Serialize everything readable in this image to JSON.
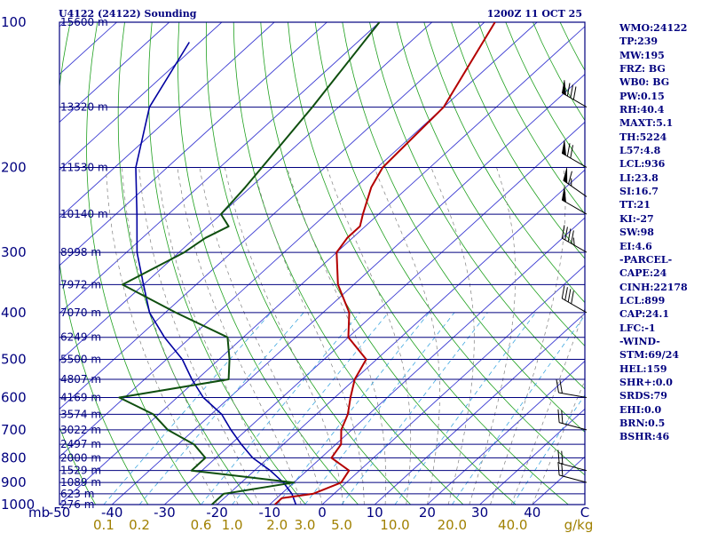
{
  "header": {
    "station": "U4122 (24122) Sounding",
    "time": "1200Z 11 OCT 25"
  },
  "stats": [
    "WMO:24122",
    "TP:239",
    "MW:195",
    "FRZ: BG",
    "WB0: BG",
    "PW:0.15",
    "RH:40.4",
    "MAXT:5.1",
    "TH:5224",
    "L57:4.8",
    "LCL:936",
    "LI:23.8",
    "SI:16.7",
    "TT:21",
    "KI:-27",
    "SW:98",
    "EI:4.6",
    "-PARCEL-",
    "CAPE:24",
    "CINH:22178",
    "LCL:899",
    "CAP:24.1",
    "LFC:-1",
    "-WIND-",
    "STM:69/24",
    "HEL:159",
    "SHR+:0.0",
    "SRDS:79",
    "EHI:0.0",
    "BRN:0.5",
    "BSHR:46"
  ],
  "colors": {
    "frame": "#00007f",
    "isobar": "#00007f",
    "isotherm": "#3c3cd2",
    "dry_adiabat": "#1fa01f",
    "moist_adiabat": "#7f7f7f",
    "mixing_ratio": "#3fa7e0",
    "temperature": "#b40000",
    "dewpoint": "#0f4f0f",
    "parcel": "#0000a0",
    "axis_text": "#00007f",
    "mixing_label": "#a08000",
    "wind": "#000000"
  },
  "chart_data": {
    "type": "skew-t",
    "pressure_range_hpa": [
      1000,
      100
    ],
    "temperature_range_c": [
      -50,
      50
    ],
    "pressure_axis_unit": "mb",
    "mixing_ratio_unit": "g/kg",
    "pressure_levels": [
      {
        "p": 100,
        "label": "100"
      },
      {
        "p": 200,
        "label": "200"
      },
      {
        "p": 300,
        "label": "300"
      },
      {
        "p": 400,
        "label": "400"
      },
      {
        "p": 500,
        "label": "500"
      },
      {
        "p": 600,
        "label": "600"
      },
      {
        "p": 700,
        "label": "700"
      },
      {
        "p": 800,
        "label": "800"
      },
      {
        "p": 900,
        "label": "900"
      },
      {
        "p": 1000,
        "label": "1000"
      }
    ],
    "height_levels": [
      {
        "p": 100,
        "label": "15600 m"
      },
      {
        "p": 150,
        "label": "13320 m"
      },
      {
        "p": 200,
        "label": "11530 m"
      },
      {
        "p": 250,
        "label": "10140 m"
      },
      {
        "p": 300,
        "label": "8998 m"
      },
      {
        "p": 350,
        "label": "7972 m"
      },
      {
        "p": 400,
        "label": "7070 m"
      },
      {
        "p": 450,
        "label": "6249 m"
      },
      {
        "p": 500,
        "label": "5500 m"
      },
      {
        "p": 550,
        "label": "4807 m"
      },
      {
        "p": 600,
        "label": "4169 m"
      },
      {
        "p": 650,
        "label": "3574 m"
      },
      {
        "p": 700,
        "label": "3022 m"
      },
      {
        "p": 750,
        "label": "2497 m"
      },
      {
        "p": 800,
        "label": "2000 m"
      },
      {
        "p": 850,
        "label": "1529 m"
      },
      {
        "p": 900,
        "label": "1089 m"
      },
      {
        "p": 950,
        "label": "623 m"
      },
      {
        "p": 1000,
        "label": "276 m"
      }
    ],
    "temp_ticks": [
      {
        "t": -50,
        "label": "-50"
      },
      {
        "t": -40,
        "label": "-40"
      },
      {
        "t": -30,
        "label": "-30"
      },
      {
        "t": -20,
        "label": "-20"
      },
      {
        "t": -10,
        "label": "-10"
      },
      {
        "t": 0,
        "label": "0"
      },
      {
        "t": 10,
        "label": "10"
      },
      {
        "t": 20,
        "label": "20"
      },
      {
        "t": 30,
        "label": "30"
      },
      {
        "t": 40,
        "label": "40"
      },
      {
        "t": 50,
        "label": "C"
      }
    ],
    "mixing_ratio_labels": [
      {
        "w": 0.1,
        "label": "0.1"
      },
      {
        "w": 0.2,
        "label": "0.2"
      },
      {
        "w": 0.6,
        "label": "0.6"
      },
      {
        "w": 1.0,
        "label": "1.0"
      },
      {
        "w": 2.0,
        "label": "2.0"
      },
      {
        "w": 3.0,
        "label": "3.0"
      },
      {
        "w": 5.0,
        "label": "5.0"
      },
      {
        "w": 10.0,
        "label": "10.0"
      },
      {
        "w": 20.0,
        "label": "20.0"
      },
      {
        "w": 40.0,
        "label": "40.0"
      }
    ],
    "temperature": [
      [
        1000,
        -9
      ],
      [
        970,
        -9
      ],
      [
        950,
        -4
      ],
      [
        900,
        -1
      ],
      [
        850,
        -2
      ],
      [
        800,
        -8
      ],
      [
        750,
        -9
      ],
      [
        700,
        -12
      ],
      [
        650,
        -14
      ],
      [
        600,
        -17
      ],
      [
        550,
        -20
      ],
      [
        500,
        -22
      ],
      [
        450,
        -30
      ],
      [
        400,
        -35
      ],
      [
        350,
        -43
      ],
      [
        300,
        -50
      ],
      [
        280,
        -51
      ],
      [
        265,
        -51
      ],
      [
        250,
        -53
      ],
      [
        220,
        -57
      ],
      [
        200,
        -59
      ],
      [
        150,
        -60
      ],
      [
        100,
        -68
      ]
    ],
    "dewpoint": [
      [
        1000,
        -21
      ],
      [
        950,
        -21
      ],
      [
        900,
        -10
      ],
      [
        850,
        -32
      ],
      [
        800,
        -32
      ],
      [
        750,
        -37
      ],
      [
        700,
        -45
      ],
      [
        650,
        -51
      ],
      [
        600,
        -61
      ],
      [
        550,
        -44
      ],
      [
        500,
        -48
      ],
      [
        450,
        -53
      ],
      [
        400,
        -68
      ],
      [
        350,
        -84
      ],
      [
        300,
        -79
      ],
      [
        280,
        -78
      ],
      [
        265,
        -76
      ],
      [
        250,
        -80
      ],
      [
        220,
        -81
      ],
      [
        200,
        -82
      ],
      [
        150,
        -85
      ],
      [
        100,
        -90
      ]
    ],
    "parcel": [
      [
        1000,
        -5
      ],
      [
        950,
        -8
      ],
      [
        900,
        -12
      ],
      [
        850,
        -17
      ],
      [
        800,
        -23
      ],
      [
        750,
        -28
      ],
      [
        700,
        -33
      ],
      [
        650,
        -38
      ],
      [
        600,
        -45
      ],
      [
        550,
        -51
      ],
      [
        500,
        -57
      ],
      [
        450,
        -65
      ],
      [
        400,
        -73
      ],
      [
        350,
        -80
      ],
      [
        300,
        -88
      ],
      [
        250,
        -96
      ],
      [
        200,
        -106
      ],
      [
        150,
        -116
      ],
      [
        110,
        -122
      ]
    ],
    "wind_barbs": [
      {
        "p": 150,
        "dir": 300,
        "speed": 80
      },
      {
        "p": 200,
        "dir": 300,
        "speed": 70
      },
      {
        "p": 230,
        "dir": 305,
        "speed": 65
      },
      {
        "p": 250,
        "dir": 300,
        "speed": 50
      },
      {
        "p": 300,
        "dir": 300,
        "speed": 45
      },
      {
        "p": 400,
        "dir": 300,
        "speed": 40
      },
      {
        "p": 600,
        "dir": 280,
        "speed": 20
      },
      {
        "p": 700,
        "dir": 285,
        "speed": 20
      },
      {
        "p": 850,
        "dir": 285,
        "speed": 20
      },
      {
        "p": 900,
        "dir": 285,
        "speed": 20
      }
    ]
  }
}
